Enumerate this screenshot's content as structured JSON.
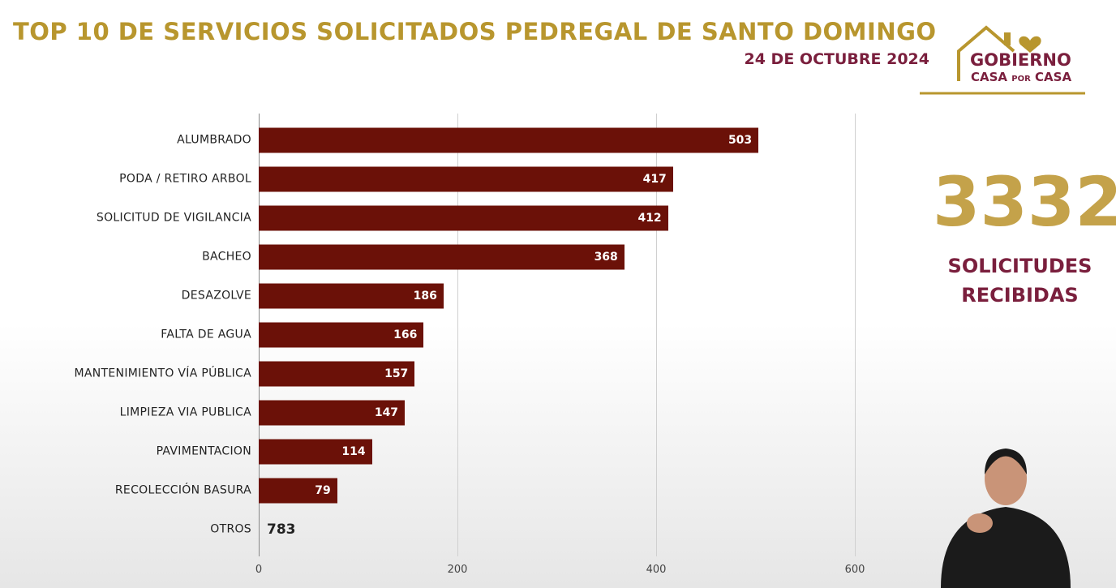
{
  "chart_data": {
    "type": "barh",
    "title": "TOP 10 DE SERVICIOS SOLICITADOS PEDREGAL DE SANTO DOMINGO",
    "subtitle": "24 DE OCTUBRE 2024",
    "categories": [
      "ALUMBRADO",
      "PODA / RETIRO ARBOL",
      "SOLICITUD DE VIGILANCIA",
      "BACHEO",
      "DESAZOLVE",
      "FALTA DE AGUA",
      "MANTENIMIENTO VÍA PÚBLICA",
      "LIMPIEZA VIA PUBLICA",
      "PAVIMENTACION",
      "RECOLECCIÓN BASURA"
    ],
    "values": [
      503,
      417,
      412,
      368,
      186,
      166,
      157,
      147,
      114,
      79
    ],
    "color": "#6b1108",
    "xlim": [
      0,
      600
    ],
    "xticks": [
      0,
      200,
      400,
      600
    ],
    "grid": true,
    "other": {
      "label": "OTROS",
      "value": 783
    },
    "total": 3332,
    "total_label": "SOLICITUDES RECIBIDAS"
  },
  "logo": {
    "line1": "GOBIERNO",
    "line2a": "CASA",
    "line2b": "POR",
    "line2c": "CASA"
  }
}
